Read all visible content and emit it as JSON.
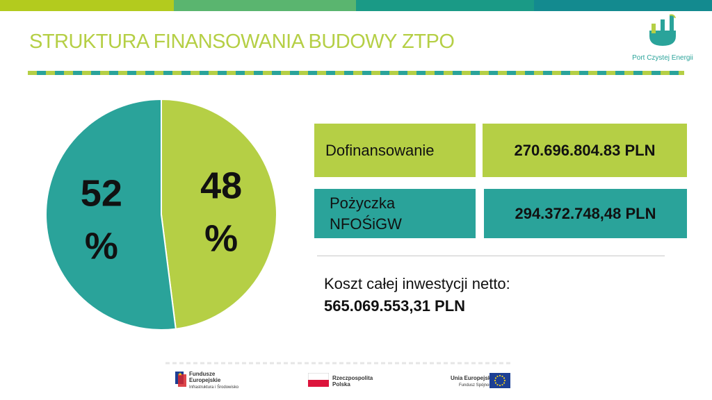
{
  "slide": {
    "title": "STRUKTURA FINANSOWANIA BUDOWY ZTPO"
  },
  "colors": {
    "accent_green": "#b5cf45",
    "accent_teal": "#2aa39a",
    "topbar": [
      "#b3cb1e",
      "#5ab56f",
      "#1a9a86",
      "#138a8f"
    ]
  },
  "logo": {
    "text": "Port Czystej Energii",
    "icon": "port-energy-logo-icon"
  },
  "chart_data": {
    "type": "pie",
    "slices": [
      {
        "label": "48 %",
        "value": 48,
        "color": "#b5cf45"
      },
      {
        "label": "52 %",
        "value": 52,
        "color": "#2aa39a"
      }
    ]
  },
  "funding": [
    {
      "label": "Dofinansowanie",
      "amount": "270.696.804.83 PLN",
      "color": "#b5cf45"
    },
    {
      "label": "Pożyczka NFOŚiGW",
      "amount": "294.372.748,48 PLN",
      "color": "#2aa39a"
    }
  ],
  "total": {
    "label": "Koszt całej inwestycji netto:",
    "value": "565.069.553,31 PLN"
  },
  "footer": {
    "fe_line1": "Fundusze",
    "fe_line2": "Europejskie",
    "fe_line3": "Infrastruktura i Środowisko",
    "rp_line1": "Rzeczpospolita",
    "rp_line2": "Polska",
    "ue_line1": "Unia Europejska",
    "ue_line2": "Fundusz Spójności"
  }
}
